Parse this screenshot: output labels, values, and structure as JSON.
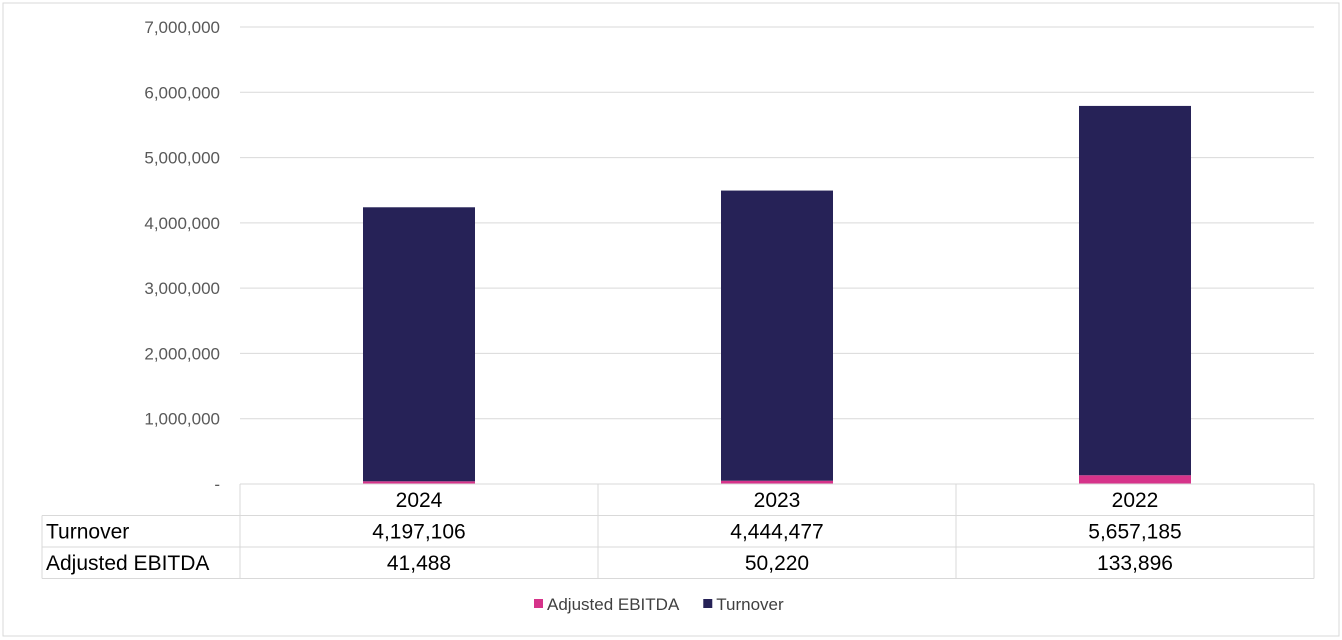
{
  "chart_data": {
    "type": "bar",
    "stacked": true,
    "categories": [
      "2024",
      "2023",
      "2022"
    ],
    "series": [
      {
        "name": "Adjusted EBITDA",
        "values": [
          41488,
          50220,
          133896
        ],
        "color": "#D6338A"
      },
      {
        "name": "Turnover",
        "values": [
          4197106,
          4444477,
          5657185
        ],
        "color": "#262257"
      }
    ],
    "ylim": [
      0,
      7000000
    ],
    "yticks": [
      {
        "value": 0,
        "label": "-"
      },
      {
        "value": 1000000,
        "label": "1,000,000"
      },
      {
        "value": 2000000,
        "label": "2,000,000"
      },
      {
        "value": 3000000,
        "label": "3,000,000"
      },
      {
        "value": 4000000,
        "label": "4,000,000"
      },
      {
        "value": 5000000,
        "label": "5,000,000"
      },
      {
        "value": 6000000,
        "label": "6,000,000"
      },
      {
        "value": 7000000,
        "label": "7,000,000"
      }
    ],
    "grid": true,
    "legend_position": "bottom",
    "data_table": {
      "rows": [
        {
          "label": "Turnover",
          "values": [
            "4,197,106",
            "4,444,477",
            "5,657,185"
          ]
        },
        {
          "label": "Adjusted EBITDA",
          "values": [
            "41,488",
            "50,220",
            "133,896"
          ]
        }
      ]
    },
    "legend": [
      {
        "label": "Adjusted EBITDA",
        "color": "#D6338A"
      },
      {
        "label": "Turnover",
        "color": "#262257"
      }
    ]
  }
}
